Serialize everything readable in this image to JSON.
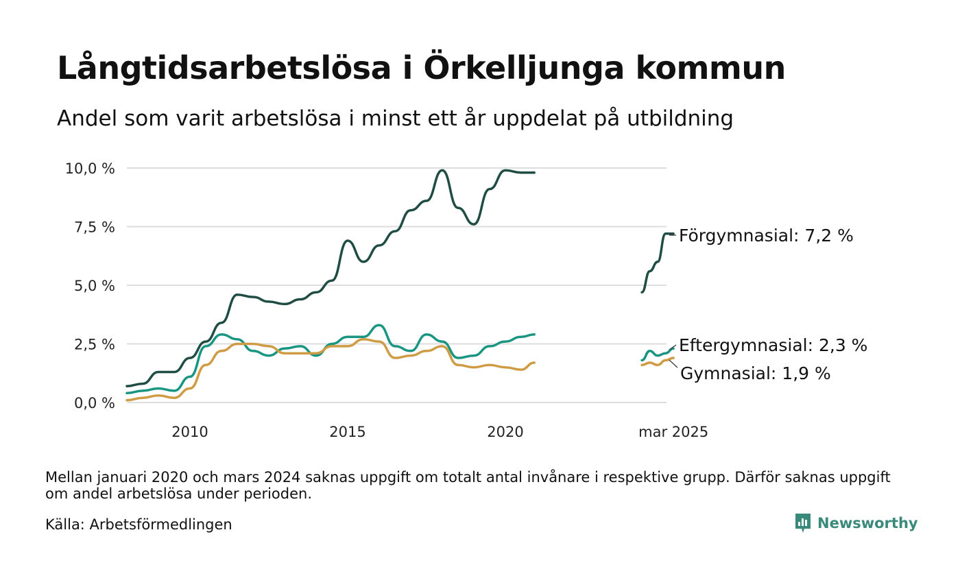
{
  "title": "Långtidsarbetslösa i Örkelljunga kommun",
  "subtitle": "Andel som varit arbetslösa i minst ett år uppdelat på utbildning",
  "note": "Mellan januari 2020 och mars 2024 saknas uppgift om totalt antal invånare i respektive grupp. Därför saknas uppgift om andel arbetslösa under perioden.",
  "source": "Källa: Arbetsförmedlingen",
  "brand": {
    "name": "Newsworthy",
    "icon": "newsworthy-logo-icon",
    "color": "#3a8a7c"
  },
  "chart_data": {
    "type": "line",
    "title": "Långtidsarbetslösa i Örkelljunga kommun",
    "subtitle": "Andel som varit arbetslösa i minst ett år uppdelat på utbildning",
    "xlabel": "",
    "ylabel": "",
    "ylim": [
      0,
      10
    ],
    "yticks": [
      0,
      2.5,
      5,
      7.5,
      10
    ],
    "ytick_labels": [
      "0,0 %",
      "2,5 %",
      "5,0 %",
      "7,5 %",
      "10,0 %"
    ],
    "xtick_labels": [
      "2010",
      "2015",
      "2020",
      "mar 2025"
    ],
    "grid": "horizontal",
    "segments": [
      {
        "x": [
          "2008-01",
          "2008-07",
          "2009-01",
          "2009-07",
          "2010-01",
          "2010-07",
          "2011-01",
          "2011-07",
          "2012-01",
          "2012-07",
          "2013-01",
          "2013-07",
          "2014-01",
          "2014-07",
          "2015-01",
          "2015-07",
          "2016-01",
          "2016-07",
          "2017-01",
          "2017-07",
          "2018-01",
          "2018-07",
          "2019-01",
          "2019-07",
          "2020-01",
          "2020-07",
          "2020-12"
        ]
      },
      {
        "x": [
          "2024-03",
          "2024-06",
          "2024-09",
          "2024-12",
          "2025-03"
        ]
      }
    ],
    "series": [
      {
        "name": "Förgymnasial",
        "color": "#1f4d43",
        "end_label": "Förgymnasial: 7,2 %",
        "segments": [
          [
            0.7,
            0.8,
            1.3,
            1.3,
            1.9,
            2.6,
            3.4,
            4.6,
            4.5,
            4.3,
            4.2,
            4.4,
            4.7,
            5.2,
            6.9,
            6.0,
            6.7,
            7.3,
            8.2,
            8.6,
            9.9,
            8.3,
            7.6,
            9.1,
            9.9,
            9.8,
            9.8
          ],
          [
            4.7,
            5.6,
            6.0,
            7.2,
            7.2
          ]
        ]
      },
      {
        "name": "Eftergymnasial",
        "color": "#1a9581",
        "end_label": "Eftergymnasial: 2,3 %",
        "segments": [
          [
            0.4,
            0.5,
            0.6,
            0.5,
            1.1,
            2.4,
            2.9,
            2.7,
            2.2,
            2.0,
            2.3,
            2.4,
            2.0,
            2.5,
            2.8,
            2.8,
            3.3,
            2.4,
            2.2,
            2.9,
            2.6,
            1.9,
            2.0,
            2.4,
            2.6,
            2.8,
            2.9
          ],
          [
            1.8,
            2.2,
            2.0,
            2.1,
            2.3
          ]
        ]
      },
      {
        "name": "Gymnasial",
        "color": "#cf9c45",
        "end_label": "Gymnasial: 1,9 %",
        "segments": [
          [
            0.1,
            0.2,
            0.3,
            0.2,
            0.6,
            1.6,
            2.2,
            2.5,
            2.5,
            2.4,
            2.1,
            2.1,
            2.1,
            2.4,
            2.4,
            2.7,
            2.6,
            1.9,
            2.0,
            2.2,
            2.4,
            1.6,
            1.5,
            1.6,
            1.5,
            1.4,
            1.7
          ],
          [
            1.6,
            1.7,
            1.6,
            1.8,
            1.9
          ]
        ]
      }
    ]
  }
}
